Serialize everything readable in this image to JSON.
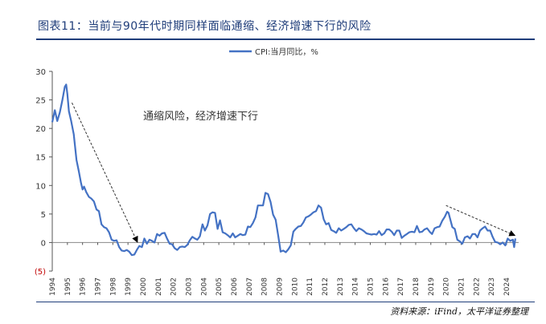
{
  "title": "图表11：当前与90年代时期同样面临通缩、经济增速下行的风险",
  "source": "资料来源：iFind，太平洋证券整理",
  "chart_data": {
    "type": "line",
    "series": [
      {
        "name": "CPI:当月同比，%",
        "color": "#4472c4",
        "points": [
          [
            1994.0,
            21.1
          ],
          [
            1994.17,
            23.2
          ],
          [
            1994.33,
            21.3
          ],
          [
            1994.5,
            22.8
          ],
          [
            1994.67,
            25.0
          ],
          [
            1994.83,
            27.3
          ],
          [
            1994.92,
            27.7
          ],
          [
            1995.0,
            26.0
          ],
          [
            1995.1,
            23.0
          ],
          [
            1995.25,
            21.3
          ],
          [
            1995.42,
            19.0
          ],
          [
            1995.6,
            14.5
          ],
          [
            1995.75,
            12.5
          ],
          [
            1995.9,
            10.4
          ],
          [
            1996.0,
            9.3
          ],
          [
            1996.1,
            9.8
          ],
          [
            1996.25,
            8.8
          ],
          [
            1996.42,
            8.0
          ],
          [
            1996.58,
            7.7
          ],
          [
            1996.75,
            7.2
          ],
          [
            1996.92,
            5.8
          ],
          [
            1997.08,
            5.5
          ],
          [
            1997.25,
            3.2
          ],
          [
            1997.42,
            2.7
          ],
          [
            1997.58,
            2.5
          ],
          [
            1997.75,
            1.8
          ],
          [
            1997.92,
            0.5
          ],
          [
            1998.08,
            0.3
          ],
          [
            1998.25,
            0.4
          ],
          [
            1998.42,
            -0.8
          ],
          [
            1998.58,
            -1.4
          ],
          [
            1998.75,
            -1.5
          ],
          [
            1998.92,
            -1.3
          ],
          [
            1999.08,
            -1.6
          ],
          [
            1999.25,
            -2.2
          ],
          [
            1999.42,
            -2.1
          ],
          [
            1999.58,
            -1.3
          ],
          [
            1999.75,
            -0.6
          ],
          [
            1999.92,
            -0.8
          ],
          [
            2000.08,
            0.7
          ],
          [
            2000.25,
            -0.2
          ],
          [
            2000.42,
            0.5
          ],
          [
            2000.58,
            0.3
          ],
          [
            2000.75,
            0.0
          ],
          [
            2000.92,
            1.5
          ],
          [
            2001.08,
            1.2
          ],
          [
            2001.25,
            1.6
          ],
          [
            2001.42,
            1.7
          ],
          [
            2001.58,
            0.7
          ],
          [
            2001.75,
            -0.2
          ],
          [
            2001.92,
            -0.3
          ],
          [
            2002.08,
            -1.0
          ],
          [
            2002.25,
            -1.3
          ],
          [
            2002.42,
            -0.8
          ],
          [
            2002.58,
            -0.7
          ],
          [
            2002.75,
            -0.8
          ],
          [
            2002.92,
            -0.4
          ],
          [
            2003.08,
            0.4
          ],
          [
            2003.25,
            1.0
          ],
          [
            2003.42,
            0.7
          ],
          [
            2003.58,
            0.5
          ],
          [
            2003.75,
            1.1
          ],
          [
            2003.92,
            3.2
          ],
          [
            2004.08,
            2.1
          ],
          [
            2004.25,
            3.0
          ],
          [
            2004.42,
            5.0
          ],
          [
            2004.58,
            5.3
          ],
          [
            2004.75,
            5.2
          ],
          [
            2004.92,
            2.4
          ],
          [
            2005.08,
            3.9
          ],
          [
            2005.25,
            1.8
          ],
          [
            2005.42,
            1.6
          ],
          [
            2005.58,
            1.3
          ],
          [
            2005.75,
            0.9
          ],
          [
            2005.92,
            1.6
          ],
          [
            2006.08,
            0.9
          ],
          [
            2006.25,
            1.2
          ],
          [
            2006.42,
            1.5
          ],
          [
            2006.58,
            1.3
          ],
          [
            2006.75,
            1.4
          ],
          [
            2006.92,
            2.8
          ],
          [
            2007.08,
            2.7
          ],
          [
            2007.25,
            3.4
          ],
          [
            2007.42,
            4.4
          ],
          [
            2007.58,
            6.5
          ],
          [
            2007.75,
            6.5
          ],
          [
            2007.92,
            6.5
          ],
          [
            2008.08,
            8.7
          ],
          [
            2008.25,
            8.5
          ],
          [
            2008.42,
            7.1
          ],
          [
            2008.58,
            4.9
          ],
          [
            2008.75,
            4.0
          ],
          [
            2008.92,
            1.2
          ],
          [
            2009.08,
            -1.6
          ],
          [
            2009.25,
            -1.4
          ],
          [
            2009.42,
            -1.7
          ],
          [
            2009.58,
            -1.2
          ],
          [
            2009.75,
            -0.5
          ],
          [
            2009.92,
            1.9
          ],
          [
            2010.08,
            2.4
          ],
          [
            2010.25,
            2.8
          ],
          [
            2010.42,
            2.9
          ],
          [
            2010.58,
            3.5
          ],
          [
            2010.75,
            4.4
          ],
          [
            2010.92,
            4.6
          ],
          [
            2011.08,
            4.9
          ],
          [
            2011.25,
            5.3
          ],
          [
            2011.42,
            5.5
          ],
          [
            2011.58,
            6.5
          ],
          [
            2011.75,
            6.1
          ],
          [
            2011.92,
            4.1
          ],
          [
            2012.08,
            3.2
          ],
          [
            2012.25,
            3.4
          ],
          [
            2012.42,
            2.2
          ],
          [
            2012.58,
            2.0
          ],
          [
            2012.75,
            1.7
          ],
          [
            2012.92,
            2.5
          ],
          [
            2013.08,
            2.1
          ],
          [
            2013.25,
            2.4
          ],
          [
            2013.42,
            2.7
          ],
          [
            2013.58,
            3.1
          ],
          [
            2013.75,
            3.2
          ],
          [
            2013.92,
            2.5
          ],
          [
            2014.08,
            2.0
          ],
          [
            2014.25,
            2.5
          ],
          [
            2014.42,
            2.3
          ],
          [
            2014.58,
            2.0
          ],
          [
            2014.75,
            1.6
          ],
          [
            2014.92,
            1.5
          ],
          [
            2015.08,
            1.4
          ],
          [
            2015.25,
            1.5
          ],
          [
            2015.42,
            1.4
          ],
          [
            2015.58,
            2.0
          ],
          [
            2015.75,
            1.3
          ],
          [
            2015.92,
            1.6
          ],
          [
            2016.08,
            2.3
          ],
          [
            2016.25,
            2.3
          ],
          [
            2016.42,
            1.9
          ],
          [
            2016.58,
            1.3
          ],
          [
            2016.75,
            2.1
          ],
          [
            2016.92,
            2.1
          ],
          [
            2017.08,
            0.8
          ],
          [
            2017.25,
            1.2
          ],
          [
            2017.42,
            1.5
          ],
          [
            2017.58,
            1.8
          ],
          [
            2017.75,
            1.9
          ],
          [
            2017.92,
            1.8
          ],
          [
            2018.08,
            2.9
          ],
          [
            2018.25,
            1.8
          ],
          [
            2018.42,
            1.9
          ],
          [
            2018.58,
            2.3
          ],
          [
            2018.75,
            2.5
          ],
          [
            2018.92,
            1.9
          ],
          [
            2019.08,
            1.5
          ],
          [
            2019.25,
            2.5
          ],
          [
            2019.42,
            2.7
          ],
          [
            2019.58,
            2.8
          ],
          [
            2019.75,
            3.8
          ],
          [
            2019.92,
            4.5
          ],
          [
            2020.08,
            5.4
          ],
          [
            2020.17,
            5.2
          ],
          [
            2020.42,
            2.7
          ],
          [
            2020.58,
            2.4
          ],
          [
            2020.75,
            0.5
          ],
          [
            2020.92,
            0.2
          ],
          [
            2021.08,
            -0.2
          ],
          [
            2021.25,
            0.9
          ],
          [
            2021.42,
            1.1
          ],
          [
            2021.58,
            0.7
          ],
          [
            2021.75,
            1.5
          ],
          [
            2021.92,
            1.5
          ],
          [
            2022.08,
            0.9
          ],
          [
            2022.25,
            2.1
          ],
          [
            2022.42,
            2.5
          ],
          [
            2022.58,
            2.8
          ],
          [
            2022.75,
            2.1
          ],
          [
            2022.92,
            2.1
          ],
          [
            2023.08,
            1.0
          ],
          [
            2023.25,
            0.1
          ],
          [
            2023.42,
            0.0
          ],
          [
            2023.58,
            -0.3
          ],
          [
            2023.75,
            0.0
          ],
          [
            2023.92,
            -0.5
          ],
          [
            2024.08,
            0.7
          ],
          [
            2024.25,
            0.3
          ],
          [
            2024.42,
            0.5
          ],
          [
            2024.5,
            -0.8
          ],
          [
            2024.58,
            0.7
          ]
        ]
      }
    ],
    "annotations": [
      {
        "text": "通缩风险，经济增速下行",
        "x": 2003.8,
        "y": 21.6
      },
      {
        "type": "dashed-arrow",
        "from": [
          1995.3,
          24.5
        ],
        "to": [
          1999.6,
          0.2
        ]
      },
      {
        "type": "dashed-arrow",
        "from": [
          2020.0,
          6.5
        ],
        "to": [
          2024.5,
          1.3
        ]
      }
    ],
    "xlabel": "",
    "ylabel": "",
    "xlim": [
      1994,
      2024.8
    ],
    "ylim": [
      -5,
      30
    ],
    "yticks": [
      -5,
      0,
      5,
      10,
      15,
      20,
      25,
      30
    ],
    "ytick_labels": [
      "(5)",
      "0",
      "5",
      "10",
      "15",
      "20",
      "25",
      "30"
    ],
    "xticks": [
      1994,
      1995,
      1996,
      1997,
      1998,
      1999,
      2000,
      2001,
      2002,
      2003,
      2004,
      2005,
      2006,
      2007,
      2008,
      2009,
      2010,
      2011,
      2012,
      2013,
      2014,
      2015,
      2016,
      2017,
      2018,
      2019,
      2020,
      2021,
      2022,
      2023,
      2024
    ],
    "grid": false,
    "legend": "top-center",
    "colors": {
      "negative_tick": "#c00000",
      "axis": "#555555",
      "annotation": "#333333"
    }
  }
}
